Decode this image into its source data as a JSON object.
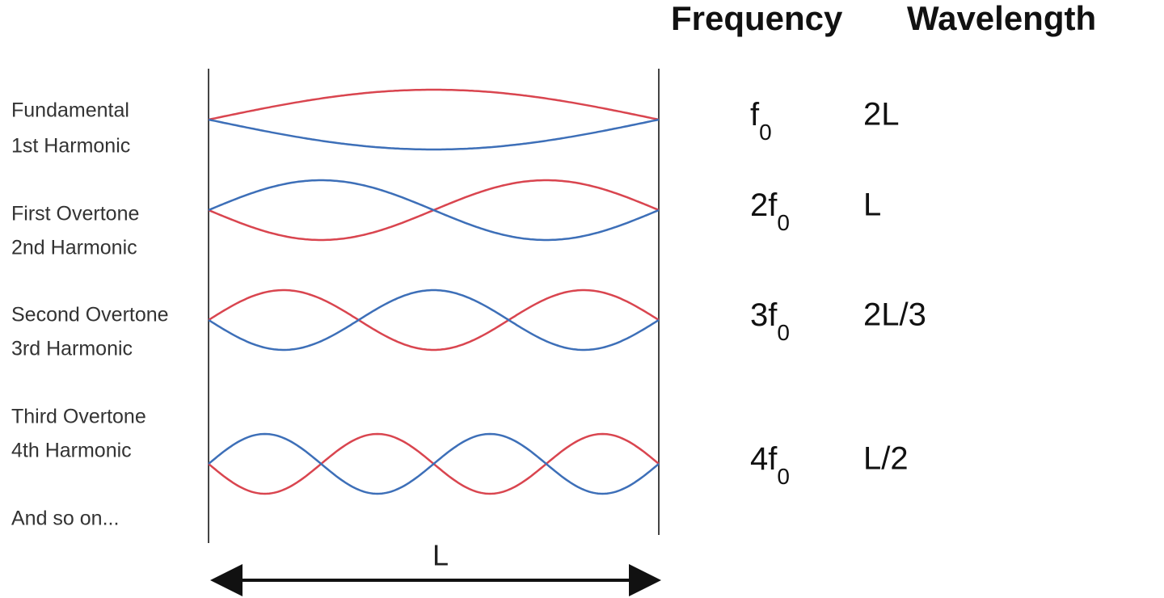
{
  "header": {
    "frequency": "Frequency",
    "wavelength": "Wavelength"
  },
  "rows": [
    {
      "label": [
        "Fundamental",
        "1st Harmonic"
      ],
      "frequency": {
        "main": "f",
        "sub": "0"
      },
      "wavelength": "2L"
    },
    {
      "label": [
        "First Overtone",
        "2nd Harmonic"
      ],
      "frequency": {
        "main": "2f",
        "sub": "0"
      },
      "wavelength": "L"
    },
    {
      "label": [
        "Second Overtone",
        "3rd Harmonic"
      ],
      "frequency": {
        "main": "3f",
        "sub": "0"
      },
      "wavelength": "2L/3"
    },
    {
      "label": [
        "Third Overtone",
        "4th Harmonic"
      ],
      "frequency": {
        "main": "4f",
        "sub": "0"
      },
      "wavelength": "L/2"
    }
  ],
  "footer": "And so on...",
  "length_label": "L"
}
